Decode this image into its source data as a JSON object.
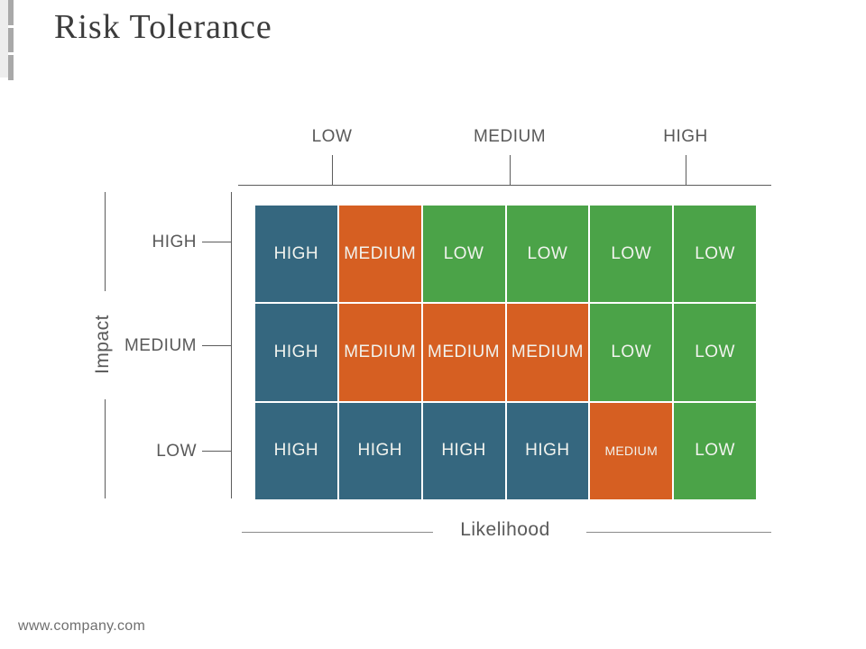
{
  "slide": {
    "title": "Risk Tolerance",
    "footer_url": "www.company.com"
  },
  "matrix": {
    "type": "heatmap",
    "x_axis": {
      "title": "Likelihood",
      "categories": [
        "LOW",
        "MEDIUM",
        "HIGH"
      ]
    },
    "y_axis": {
      "title": "Impact",
      "categories": [
        "HIGH",
        "MEDIUM",
        "LOW"
      ]
    },
    "rows": [
      {
        "impact": "HIGH",
        "cells": [
          {
            "label": "HIGH",
            "level": "high"
          },
          {
            "label": "MEDIUM",
            "level": "medium"
          },
          {
            "label": "LOW",
            "level": "low"
          },
          {
            "label": "LOW",
            "level": "low"
          },
          {
            "label": "LOW",
            "level": "low"
          },
          {
            "label": "LOW",
            "level": "low"
          }
        ]
      },
      {
        "impact": "MEDIUM",
        "cells": [
          {
            "label": "HIGH",
            "level": "high"
          },
          {
            "label": "MEDIUM",
            "level": "medium"
          },
          {
            "label": "MEDIUM",
            "level": "medium"
          },
          {
            "label": "MEDIUM",
            "level": "medium"
          },
          {
            "label": "LOW",
            "level": "low"
          },
          {
            "label": "LOW",
            "level": "low"
          }
        ]
      },
      {
        "impact": "LOW",
        "cells": [
          {
            "label": "HIGH",
            "level": "high"
          },
          {
            "label": "HIGH",
            "level": "high"
          },
          {
            "label": "HIGH",
            "level": "high"
          },
          {
            "label": "HIGH",
            "level": "high"
          },
          {
            "label": "MEDIUM",
            "level": "medium",
            "small": true
          },
          {
            "label": "LOW",
            "level": "low"
          }
        ]
      }
    ]
  },
  "colors": {
    "high_cell": "#35677F",
    "medium_cell": "#D65F22",
    "low_cell": "#4BA348",
    "axis_line": "#5C5C5C",
    "label_text": "#595959",
    "cell_text": "#F1F3EE"
  }
}
